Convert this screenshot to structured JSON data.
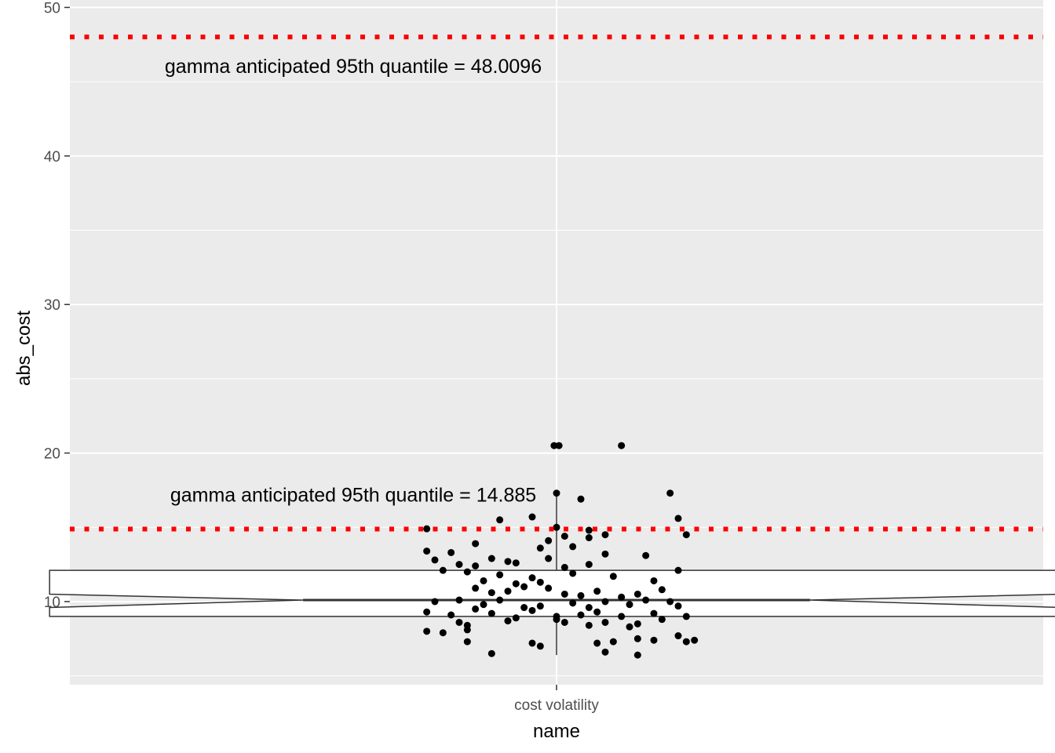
{
  "chart_data": {
    "type": "boxplot",
    "xlabel": "name",
    "ylabel": "abs_cost",
    "categories": [
      "cost volatility"
    ],
    "ylim": [
      4.4,
      50.5
    ],
    "y_ticks": [
      10,
      20,
      30,
      40,
      50
    ],
    "y_tick_labels": [
      "10",
      "20",
      "30",
      "40",
      "50"
    ],
    "grid": true,
    "box": {
      "category": "cost volatility",
      "q1": 9.0,
      "median": 10.1,
      "q3": 12.1,
      "notch_lower": 9.6,
      "notch_upper": 10.5,
      "whisker_low": 6.4,
      "whisker_high": 17.1
    },
    "reference_lines": [
      {
        "y": 48.0096,
        "color": "#ff0000",
        "style": "dotted",
        "label": "gamma anticipated 95th quantile = 48.0096"
      },
      {
        "y": 14.885,
        "color": "#ff0000",
        "style": "dotted",
        "label": "gamma anticipated 95th quantile = 14.885"
      }
    ],
    "points": [
      {
        "x": -0.003,
        "y": 20.5
      },
      {
        "x": 0.003,
        "y": 20.5
      },
      {
        "x": 0.08,
        "y": 20.5
      },
      {
        "x": 0.0,
        "y": 17.3
      },
      {
        "x": 0.03,
        "y": 16.9
      },
      {
        "x": 0.14,
        "y": 17.3
      },
      {
        "x": -0.07,
        "y": 15.5
      },
      {
        "x": -0.03,
        "y": 15.7
      },
      {
        "x": 0.15,
        "y": 15.6
      },
      {
        "x": -0.16,
        "y": 14.9
      },
      {
        "x": 0.0,
        "y": 15.0
      },
      {
        "x": 0.04,
        "y": 14.8
      },
      {
        "x": 0.01,
        "y": 14.4
      },
      {
        "x": 0.04,
        "y": 14.3
      },
      {
        "x": 0.06,
        "y": 14.5
      },
      {
        "x": 0.16,
        "y": 14.5
      },
      {
        "x": -0.1,
        "y": 13.9
      },
      {
        "x": -0.01,
        "y": 14.1
      },
      {
        "x": -0.16,
        "y": 13.4
      },
      {
        "x": -0.13,
        "y": 13.3
      },
      {
        "x": -0.02,
        "y": 13.6
      },
      {
        "x": 0.02,
        "y": 13.7
      },
      {
        "x": 0.06,
        "y": 13.2
      },
      {
        "x": 0.11,
        "y": 13.1
      },
      {
        "x": -0.15,
        "y": 12.8
      },
      {
        "x": -0.12,
        "y": 12.5
      },
      {
        "x": -0.1,
        "y": 12.4
      },
      {
        "x": -0.08,
        "y": 12.9
      },
      {
        "x": -0.06,
        "y": 12.7
      },
      {
        "x": -0.05,
        "y": 12.6
      },
      {
        "x": -0.01,
        "y": 12.9
      },
      {
        "x": 0.01,
        "y": 12.3
      },
      {
        "x": 0.04,
        "y": 12.5
      },
      {
        "x": 0.15,
        "y": 12.1
      },
      {
        "x": -0.14,
        "y": 12.1
      },
      {
        "x": -0.11,
        "y": 12.0
      },
      {
        "x": -0.09,
        "y": 11.4
      },
      {
        "x": -0.07,
        "y": 11.8
      },
      {
        "x": -0.05,
        "y": 11.2
      },
      {
        "x": -0.03,
        "y": 11.6
      },
      {
        "x": -0.02,
        "y": 11.3
      },
      {
        "x": 0.02,
        "y": 11.9
      },
      {
        "x": 0.07,
        "y": 11.7
      },
      {
        "x": 0.12,
        "y": 11.4
      },
      {
        "x": 0.13,
        "y": 10.8
      },
      {
        "x": -0.1,
        "y": 10.9
      },
      {
        "x": -0.08,
        "y": 10.6
      },
      {
        "x": -0.06,
        "y": 10.7
      },
      {
        "x": -0.04,
        "y": 11.0
      },
      {
        "x": -0.01,
        "y": 10.9
      },
      {
        "x": 0.01,
        "y": 10.5
      },
      {
        "x": 0.03,
        "y": 10.4
      },
      {
        "x": 0.05,
        "y": 10.7
      },
      {
        "x": 0.08,
        "y": 10.3
      },
      {
        "x": 0.1,
        "y": 10.5
      },
      {
        "x": -0.15,
        "y": 10.0
      },
      {
        "x": -0.12,
        "y": 10.1
      },
      {
        "x": -0.09,
        "y": 9.8
      },
      {
        "x": -0.07,
        "y": 10.1
      },
      {
        "x": -0.04,
        "y": 9.6
      },
      {
        "x": -0.02,
        "y": 9.7
      },
      {
        "x": 0.02,
        "y": 9.9
      },
      {
        "x": 0.04,
        "y": 9.6
      },
      {
        "x": 0.06,
        "y": 10.0
      },
      {
        "x": 0.09,
        "y": 9.8
      },
      {
        "x": 0.11,
        "y": 10.1
      },
      {
        "x": 0.14,
        "y": 10.0
      },
      {
        "x": 0.15,
        "y": 9.7
      },
      {
        "x": -0.16,
        "y": 9.3
      },
      {
        "x": -0.13,
        "y": 9.1
      },
      {
        "x": -0.1,
        "y": 9.5
      },
      {
        "x": -0.08,
        "y": 9.2
      },
      {
        "x": -0.05,
        "y": 8.9
      },
      {
        "x": -0.03,
        "y": 9.4
      },
      {
        "x": 0.0,
        "y": 9.0
      },
      {
        "x": 0.03,
        "y": 9.1
      },
      {
        "x": 0.05,
        "y": 9.3
      },
      {
        "x": 0.08,
        "y": 9.0
      },
      {
        "x": 0.12,
        "y": 9.2
      },
      {
        "x": 0.16,
        "y": 9.0
      },
      {
        "x": -0.12,
        "y": 8.6
      },
      {
        "x": -0.11,
        "y": 8.4
      },
      {
        "x": -0.06,
        "y": 8.7
      },
      {
        "x": 0.0,
        "y": 8.8
      },
      {
        "x": 0.01,
        "y": 8.6
      },
      {
        "x": 0.04,
        "y": 8.4
      },
      {
        "x": 0.06,
        "y": 8.6
      },
      {
        "x": 0.1,
        "y": 8.5
      },
      {
        "x": 0.13,
        "y": 8.8
      },
      {
        "x": -0.16,
        "y": 8.0
      },
      {
        "x": -0.14,
        "y": 7.9
      },
      {
        "x": -0.11,
        "y": 8.1
      },
      {
        "x": 0.09,
        "y": 8.3
      },
      {
        "x": 0.15,
        "y": 7.7
      },
      {
        "x": -0.11,
        "y": 7.3
      },
      {
        "x": -0.03,
        "y": 7.2
      },
      {
        "x": -0.02,
        "y": 7.0
      },
      {
        "x": 0.05,
        "y": 7.2
      },
      {
        "x": 0.07,
        "y": 7.3
      },
      {
        "x": 0.1,
        "y": 7.5
      },
      {
        "x": 0.12,
        "y": 7.4
      },
      {
        "x": 0.16,
        "y": 7.3
      },
      {
        "x": 0.17,
        "y": 7.4
      },
      {
        "x": -0.08,
        "y": 6.5
      },
      {
        "x": 0.06,
        "y": 6.6
      },
      {
        "x": 0.1,
        "y": 6.4
      }
    ]
  }
}
